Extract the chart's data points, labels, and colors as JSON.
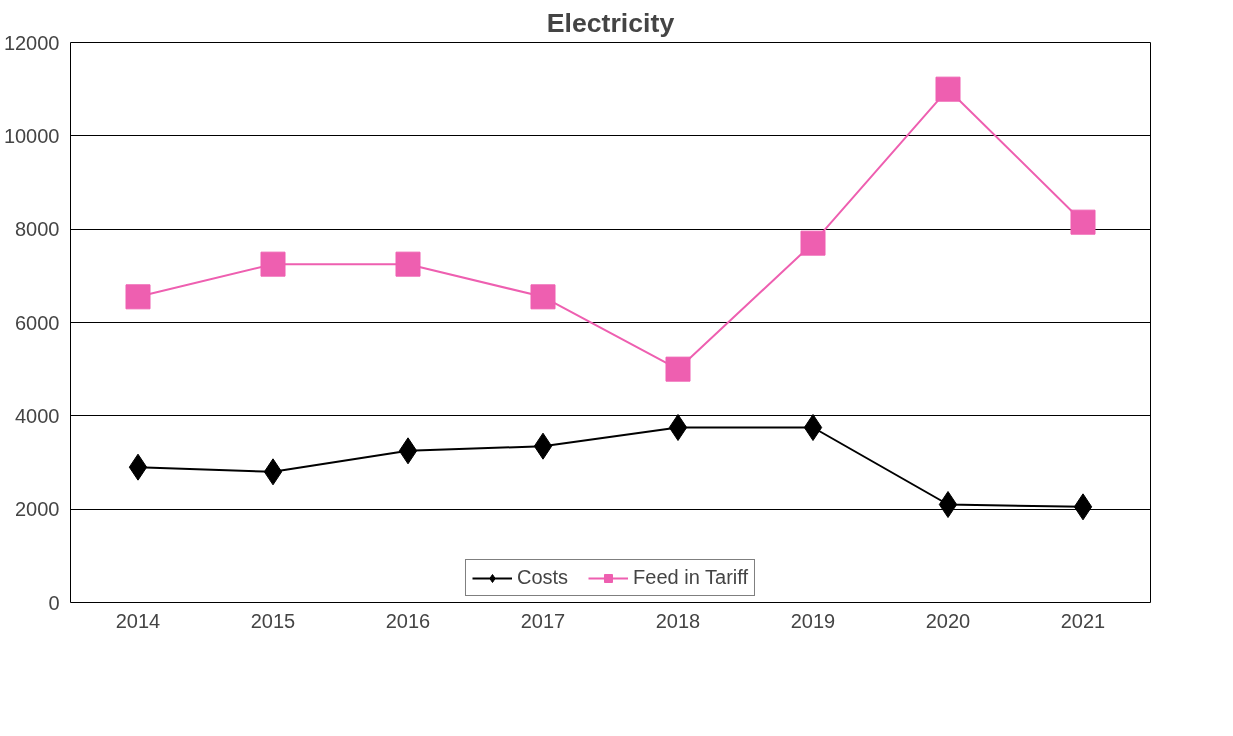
{
  "chart_data": {
    "type": "line",
    "title": "Electricity",
    "categories": [
      "2014",
      "2015",
      "2016",
      "2017",
      "2018",
      "2019",
      "2020",
      "2021"
    ],
    "series": [
      {
        "name": "Costs",
        "color": "#000000",
        "marker": "diamond",
        "values": [
          2900,
          2800,
          3250,
          3350,
          3750,
          3750,
          2100,
          2050
        ]
      },
      {
        "name": "Feed in Tariff",
        "color": "#ee5fb0",
        "marker": "square",
        "values": [
          6550,
          7250,
          7250,
          6550,
          5000,
          7700,
          11000,
          8150
        ]
      }
    ],
    "ylim": [
      0,
      12000
    ],
    "yticks": [
      0,
      2000,
      4000,
      6000,
      8000,
      10000,
      12000
    ],
    "grid": "y",
    "legend": "bottom"
  }
}
